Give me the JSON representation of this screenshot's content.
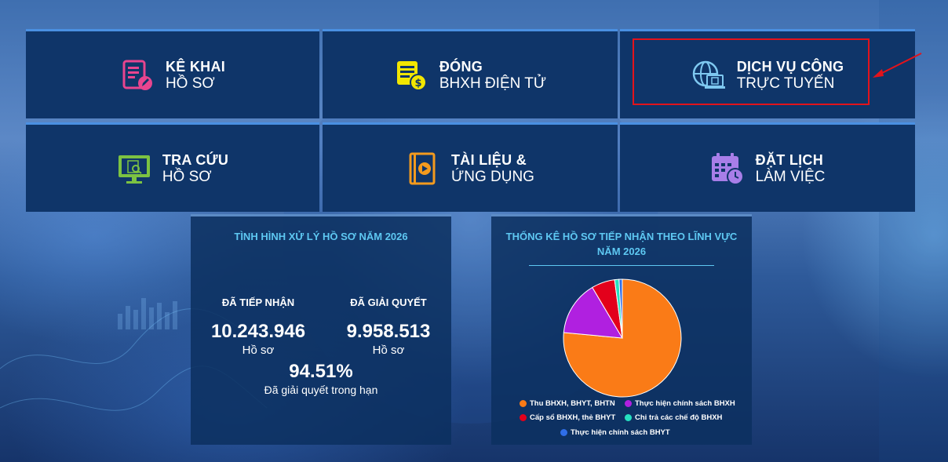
{
  "tiles": [
    {
      "line1": "KÊ KHAI",
      "line2": "HỒ SƠ",
      "icon": "document-edit-icon",
      "color": "#e8458f"
    },
    {
      "line1": "ĐÓNG",
      "line2": "BHXH ĐIỆN TỬ",
      "icon": "payment-icon",
      "color": "#f2e600"
    },
    {
      "line1": "DỊCH VỤ CÔNG",
      "line2": "TRỰC TUYẾN",
      "icon": "online-service-icon",
      "color": "#7ec8f0"
    },
    {
      "line1": "TRA CỨU",
      "line2": "HỒ SƠ",
      "icon": "monitor-search-icon",
      "color": "#7cc242"
    },
    {
      "line1": "TÀI LIỆU &",
      "line2": "ỨNG DỤNG",
      "icon": "book-play-icon",
      "color": "#f39a1e"
    },
    {
      "line1": "ĐẶT LỊCH",
      "line2": "LÀM VIỆC",
      "icon": "calendar-clock-icon",
      "color": "#a87ee8"
    }
  ],
  "stats_panel": {
    "title": "TÌNH HÌNH XỬ LÝ HỒ SƠ NĂM 2026",
    "received_label": "ĐÃ TIẾP NHẬN",
    "received_value": "10.243.946",
    "received_unit": "Hồ sơ",
    "resolved_label": "ĐÃ GIẢI QUYẾT",
    "resolved_value": "9.958.513",
    "resolved_unit": "Hồ sơ",
    "ontime_value": "94.51%",
    "ontime_label": "Đã giải quyết trong hạn"
  },
  "chart_panel": {
    "title_line1": "THỐNG KÊ HỒ SƠ TIẾP NHẬN THEO LĨNH VỰC",
    "title_line2": "NĂM 2026"
  },
  "chart_data": {
    "type": "pie",
    "title": "THỐNG KÊ HỒ SƠ TIẾP NHẬN THEO LĨNH VỰC NĂM 2026",
    "series": [
      {
        "name": "Thu BHXH, BHYT, BHTN",
        "value": 76.5,
        "color": "#fa7b17"
      },
      {
        "name": "Thực hiện chính sách BHXH",
        "value": 15.0,
        "color": "#b020e0"
      },
      {
        "name": "Cấp sổ BHXH, thẻ BHYT",
        "value": 6.4,
        "color": "#e3001b"
      },
      {
        "name": "Chi trả các chế độ BHXH",
        "value": 1.2,
        "color": "#26e0c0"
      },
      {
        "name": "Thực hiện chính sách BHYT",
        "value": 0.9,
        "color": "#2f6ee8"
      }
    ],
    "legend": "bottom"
  },
  "colors": {
    "tile_bg": "#0f3569",
    "title_cyan": "#5ec8f2",
    "highlight_red": "#e3131b"
  }
}
